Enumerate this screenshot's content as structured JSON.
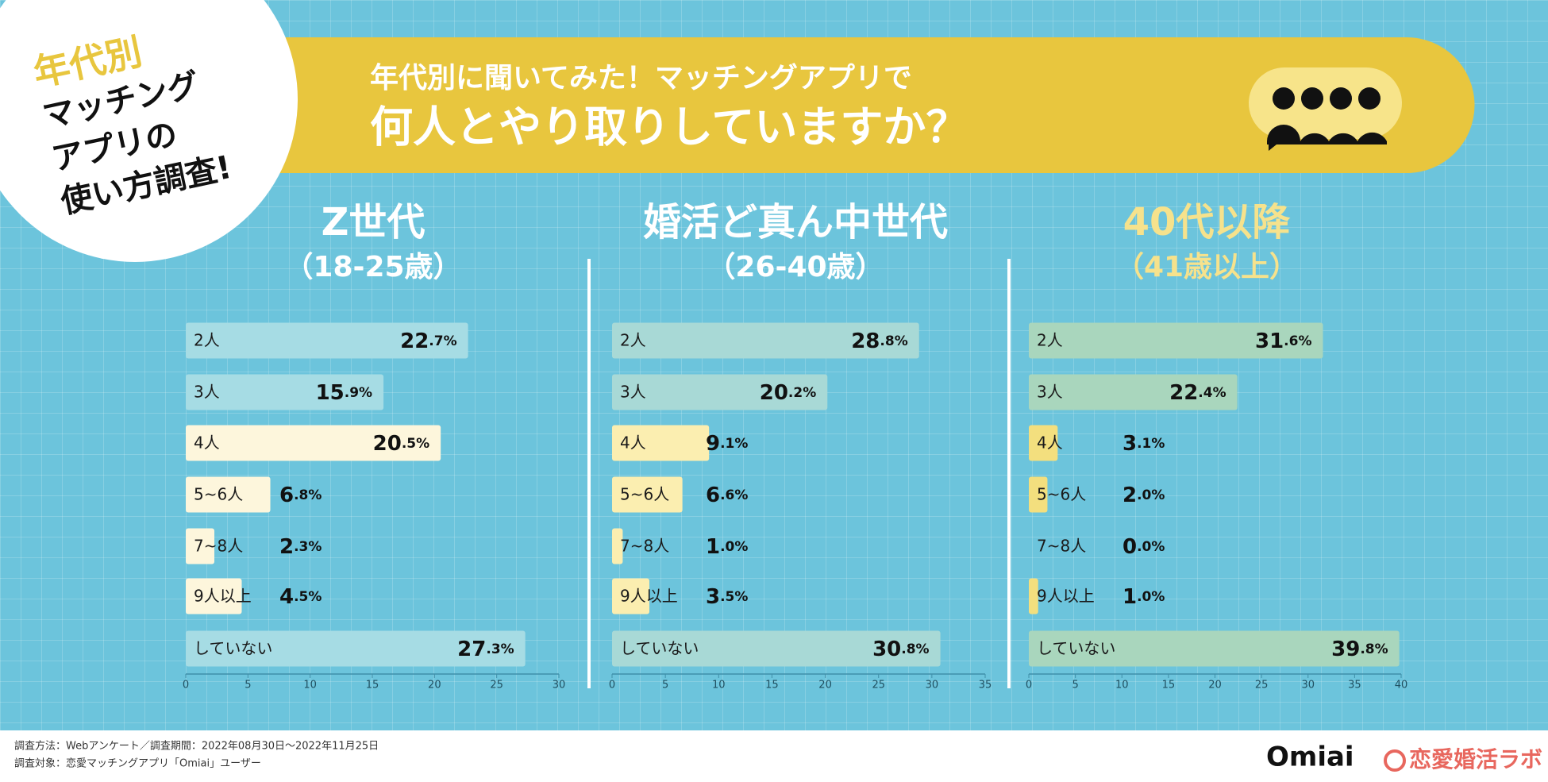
{
  "badge": {
    "lines": [
      "年代別",
      "マッチング",
      "アプリの",
      "使い方調査!"
    ]
  },
  "header": {
    "kicker": "年代別に聞いてみた！マッチングアプリで",
    "title": "何人とやり取りしていますか？"
  },
  "chart_data": [
    {
      "type": "bar",
      "title": "Z世代",
      "subtitle": "（18-25歳）",
      "title_color": "#ffffff",
      "categories": [
        "2人",
        "3人",
        "4人",
        "5~6人",
        "7~8人",
        "9人以上",
        "していない"
      ],
      "values": [
        22.7,
        15.9,
        20.5,
        6.8,
        2.3,
        4.5,
        27.3
      ],
      "value_labels": [
        "22.7%",
        "15.9%",
        "20.5%",
        "6.8%",
        "2.3%",
        "4.5%",
        "27.3%"
      ],
      "colors": [
        "#a6dce4",
        "#a6dce4",
        "#fdf6dc",
        "#fdf6dc",
        "#fdf6dc",
        "#fdf6dc",
        "#a6dce4"
      ],
      "xlim": [
        0,
        30
      ],
      "xticks": [
        0,
        5,
        10,
        15,
        20,
        25,
        30
      ]
    },
    {
      "type": "bar",
      "title": "婚活ど真ん中世代",
      "subtitle": "（26-40歳）",
      "title_color": "#ffffff",
      "categories": [
        "2人",
        "3人",
        "4人",
        "5~6人",
        "7~8人",
        "9人以上",
        "していない"
      ],
      "values": [
        28.8,
        20.2,
        9.1,
        6.6,
        1.0,
        3.5,
        30.8
      ],
      "value_labels": [
        "28.8%",
        "20.2%",
        "9.1%",
        "6.6%",
        "1.0%",
        "3.5%",
        "30.8%"
      ],
      "colors": [
        "#a8d9d6",
        "#a8d9d6",
        "#fbeeb0",
        "#fbeeb0",
        "#fbeeb0",
        "#fbeeb0",
        "#a8d9d6"
      ],
      "xlim": [
        0,
        35
      ],
      "xticks": [
        0,
        5,
        10,
        15,
        20,
        25,
        30,
        35
      ]
    },
    {
      "type": "bar",
      "title": "40代以降",
      "subtitle": "（41歳以上）",
      "title_color": "#f6e28c",
      "categories": [
        "2人",
        "3人",
        "4人",
        "5~6人",
        "7~8人",
        "9人以上",
        "していない"
      ],
      "values": [
        31.6,
        22.4,
        3.1,
        2.0,
        0.0,
        1.0,
        39.8
      ],
      "value_labels": [
        "31.6%",
        "22.4%",
        "3.1%",
        "2.0%",
        "0.0%",
        "1.0%",
        "39.8%"
      ],
      "colors": [
        "#a9d6bd",
        "#a9d6bd",
        "#f3df7e",
        "#f3df7e",
        "#f3df7e",
        "#f3df7e",
        "#a9d6bd"
      ],
      "xlim": [
        0,
        40
      ],
      "xticks": [
        0,
        5,
        10,
        15,
        20,
        25,
        30,
        35,
        40
      ]
    }
  ],
  "footer": {
    "method": "調査方法：Webアンケート／調査期間：2022年08月30日～2022年11月25日",
    "target": "調査対象：恋愛マッチングアプリ「Omiai」ユーザー",
    "brand": "Omiai",
    "lab": "恋愛婚活ラボ"
  }
}
